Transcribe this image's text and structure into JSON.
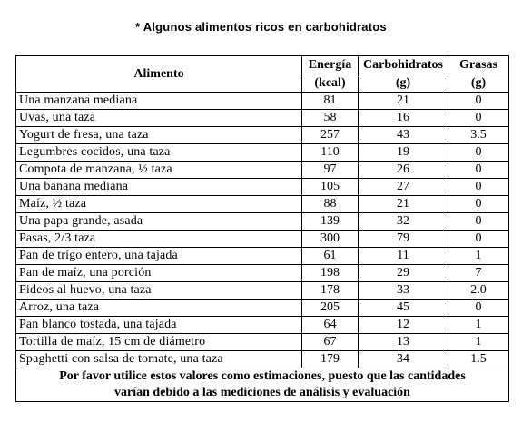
{
  "caption": "* Algunos alimentos ricos en carbohidratos",
  "table": {
    "headers": {
      "food": "Alimento",
      "energy_top": "Energía",
      "energy_bottom": "(kcal)",
      "carb_top": "Carbohidratos",
      "carb_bottom": "(g)",
      "fat_top": "Grasas",
      "fat_bottom": "(g)"
    },
    "rows": [
      {
        "food": "Una manzana mediana",
        "energy": "81",
        "carb": "21",
        "fat": "0"
      },
      {
        "food": "Uvas, una taza",
        "energy": "58",
        "carb": "16",
        "fat": "0"
      },
      {
        "food": "Yogurt de fresa, una taza",
        "energy": "257",
        "carb": "43",
        "fat": "3.5"
      },
      {
        "food": "Legumbres cocidos, una taza",
        "energy": "110",
        "carb": "19",
        "fat": "0"
      },
      {
        "food": "Compota de manzana, ½ taza",
        "energy": "97",
        "carb": "26",
        "fat": "0"
      },
      {
        "food": "Una banana mediana",
        "energy": "105",
        "carb": "27",
        "fat": "0"
      },
      {
        "food": "Maíz, ½ taza",
        "energy": "88",
        "carb": "21",
        "fat": "0"
      },
      {
        "food": "Una papa grande, asada",
        "energy": "139",
        "carb": "32",
        "fat": "0"
      },
      {
        "food": "Pasas, 2/3 taza",
        "energy": "300",
        "carb": "79",
        "fat": "0"
      },
      {
        "food": "Pan de trigo entero, una tajada",
        "energy": "61",
        "carb": "11",
        "fat": "1"
      },
      {
        "food": "Pan de maíz, una porción",
        "energy": "198",
        "carb": "29",
        "fat": "7"
      },
      {
        "food": "Fideos al huevo, una taza",
        "energy": "178",
        "carb": "33",
        "fat": "2.0"
      },
      {
        "food": "Arroz, una taza",
        "energy": "205",
        "carb": "45",
        "fat": "0"
      },
      {
        "food": "Pan blanco tostada, una tajada",
        "energy": "64",
        "carb": "12",
        "fat": "1"
      },
      {
        "food": "Tortilla de maíz, 15 cm de diámetro",
        "energy": "67",
        "carb": "13",
        "fat": "1"
      },
      {
        "food": "Spaghetti con salsa de tomate, una taza",
        "energy": "179",
        "carb": "34",
        "fat": "1.5"
      }
    ],
    "note_line1": "Por favor utilice estos valores como estimaciones, puesto que las cantidades",
    "note_line2": "varían debido a las mediciones de análisis y evaluación"
  }
}
